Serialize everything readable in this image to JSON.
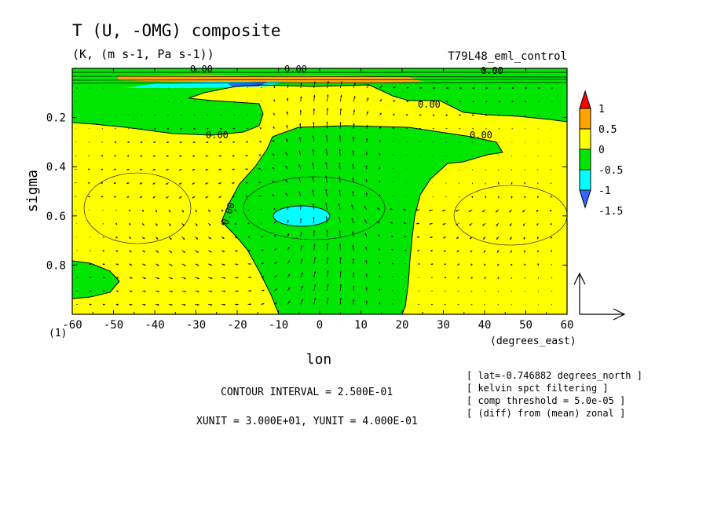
{
  "chart_data": {
    "type": "heatmap",
    "title": "T (U, -OMG) composite",
    "subtitle": "(K, (m s-1, Pa s-1))",
    "run_label": "T79L48_eml_control",
    "xlabel": "lon",
    "xunit_label": "(degrees_east)",
    "ylabel": "sigma",
    "corner_label": "(1)",
    "xlim": [
      -60,
      60
    ],
    "ylim": [
      1.0,
      0.0
    ],
    "x_ticks": [
      -60,
      -50,
      -40,
      -30,
      -20,
      -10,
      0,
      10,
      20,
      30,
      40,
      50,
      60
    ],
    "x_tick_labels": [
      "-60",
      "-50",
      "-40",
      "-30",
      "-20",
      "-10",
      "0",
      "10",
      "20",
      "30",
      "40",
      "50",
      "60"
    ],
    "y_ticks": [
      0.2,
      0.4,
      0.6,
      0.8
    ],
    "y_tick_labels": [
      "0.2",
      "0.4",
      "0.6",
      "0.8"
    ],
    "colorbar": {
      "levels": [
        -1.5,
        -1,
        -0.5,
        0,
        0.5,
        1
      ],
      "labels": [
        "-1.5",
        "-1",
        "-0.5",
        "0",
        "0.5",
        "1"
      ],
      "colors": [
        "#3366ff",
        "#00ffff",
        "#00e600",
        "#ffff00",
        "#ffa500",
        "#ff0000"
      ],
      "under_color": "#3366ff",
      "over_color": "#ff0000"
    },
    "contour_label": "0.00",
    "contour_interval_text": "CONTOUR INTERVAL = 2.500E-01",
    "units_text": "XUNIT = 3.000E+01, YUNIT = 4.000E-01",
    "info_lines": [
      "[ lat=-0.746882 degrees_north ]",
      "[ kelvin spct filtering ]",
      "[ comp threshold = 5.0e-05 ]",
      "[ (diff) from (mean) zonal ]"
    ]
  }
}
